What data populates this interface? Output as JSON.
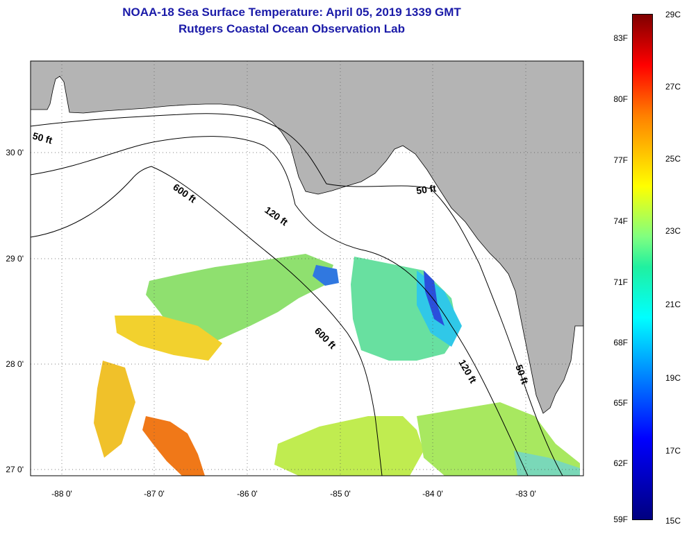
{
  "title": {
    "line1": "NOAA-18 Sea Surface Temperature:  April 05, 2019 1339 GMT",
    "line2": "Rutgers Coastal Ocean Observation Lab"
  },
  "map": {
    "lat_ticks": [
      "30 0'",
      "29 0'",
      "28 0'",
      "27 0'"
    ],
    "lon_ticks": [
      "-88 0'",
      "-87 0'",
      "-86 0'",
      "-85 0'",
      "-84 0'",
      "-83 0'"
    ],
    "contour_labels": [
      "50 ft",
      "600 ft",
      "120 ft",
      "50 ft",
      "600 ft",
      "120 ft",
      "50 ft"
    ],
    "colors": {
      "land": "#b4b4b4",
      "ocean": "#ffffff",
      "contour": "#000000"
    }
  },
  "colorbar": {
    "fahrenheit": [
      "83F",
      "80F",
      "77F",
      "74F",
      "71F",
      "68F",
      "65F",
      "62F",
      "59F"
    ],
    "celsius": [
      "29C",
      "27C",
      "25C",
      "23C",
      "21C",
      "19C",
      "17C",
      "15C"
    ],
    "range_c": [
      15,
      29
    ],
    "colors": [
      "#00007f",
      "#0000ff",
      "#0080ff",
      "#00ffff",
      "#80ff80",
      "#ffff00",
      "#ff8000",
      "#ff0000",
      "#7f0000"
    ]
  }
}
